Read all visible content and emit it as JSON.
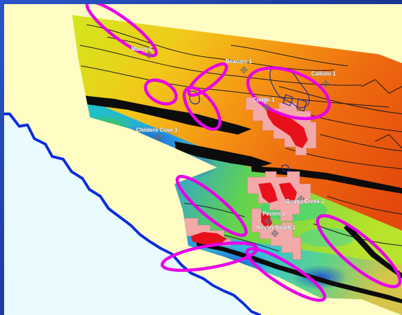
{
  "map": {
    "colors": {
      "slide_background": "#1d3c9a",
      "land_yellow": "#fffdc4",
      "sea": "#e9fbff",
      "coastline": "#0b2ed9",
      "highlight_ellipse": "#e800e8",
      "lease_block": "#f4a9a9",
      "prospect": "#e8101a",
      "fault_line": "#1a1a1a"
    },
    "wells": [
      {
        "id": "marus",
        "label": "Marus 1"
      },
      {
        "id": "bearups",
        "label": "Bearups 1"
      },
      {
        "id": "callisto",
        "label": "Callisto 1"
      },
      {
        "id": "childers-cove",
        "label": "Childers Cove 1"
      },
      {
        "id": "conan",
        "label": "Conan 1"
      },
      {
        "id": "boggy-creek",
        "label": "Boggy Creek 1"
      },
      {
        "id": "pecten",
        "label": "Pecten 1"
      },
      {
        "id": "keyler-south",
        "label": "Keyler South 1"
      }
    ]
  }
}
